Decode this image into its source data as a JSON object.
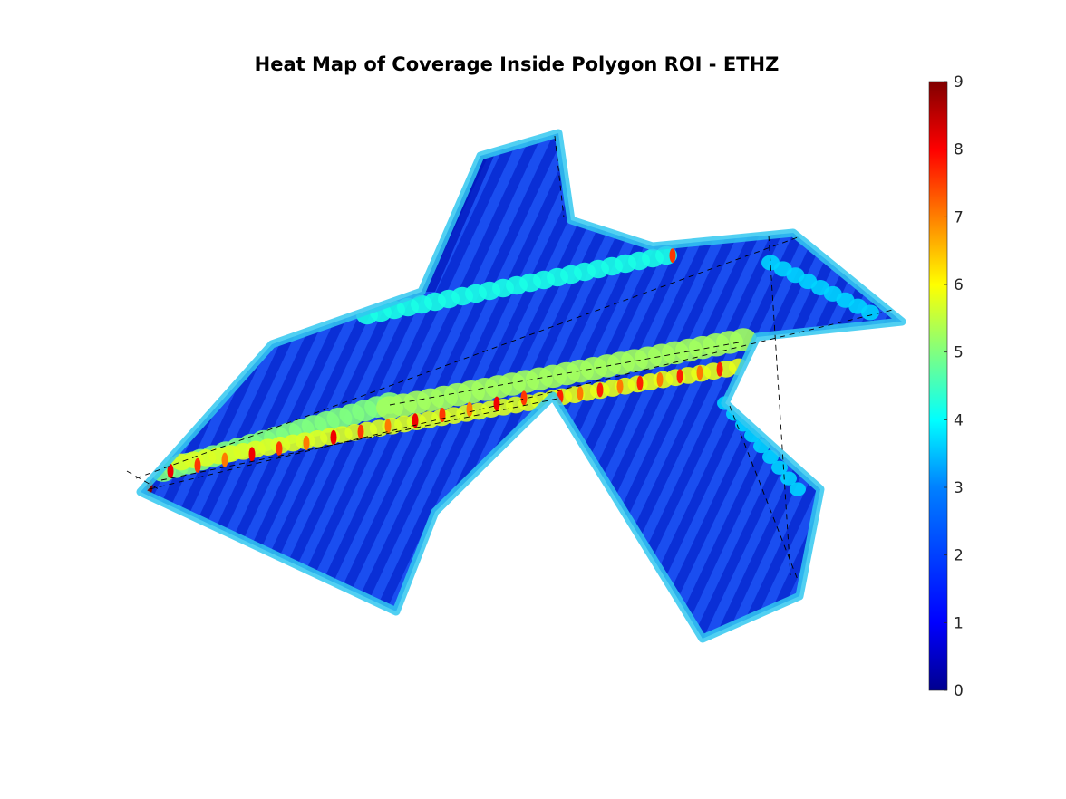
{
  "chart_data": {
    "type": "heatmap",
    "title": "Heat Map of Coverage Inside Polygon ROI - ETHZ",
    "xlabel": "",
    "ylabel": "",
    "axes_visible": false,
    "colormap": "jet",
    "colorbar": {
      "position": "right",
      "range": [
        0,
        9
      ],
      "ticks": [
        0,
        1,
        2,
        3,
        4,
        5,
        6,
        7,
        8,
        9
      ],
      "tick_labels": [
        "0",
        "1",
        "2",
        "3",
        "4",
        "5",
        "6",
        "7",
        "8",
        "9"
      ],
      "colors": [
        "#00008f",
        "#0000ff",
        "#0080ff",
        "#00ffff",
        "#80ff80",
        "#ffff00",
        "#ff8000",
        "#ff0000",
        "#800000"
      ]
    },
    "background_level": 1,
    "stripe_level": 2,
    "boundary_level": 3,
    "overlap_band_level": 5,
    "overlap_peak_level": 8,
    "hotspot_level": 9,
    "paths_style": "black dashed lines"
  }
}
